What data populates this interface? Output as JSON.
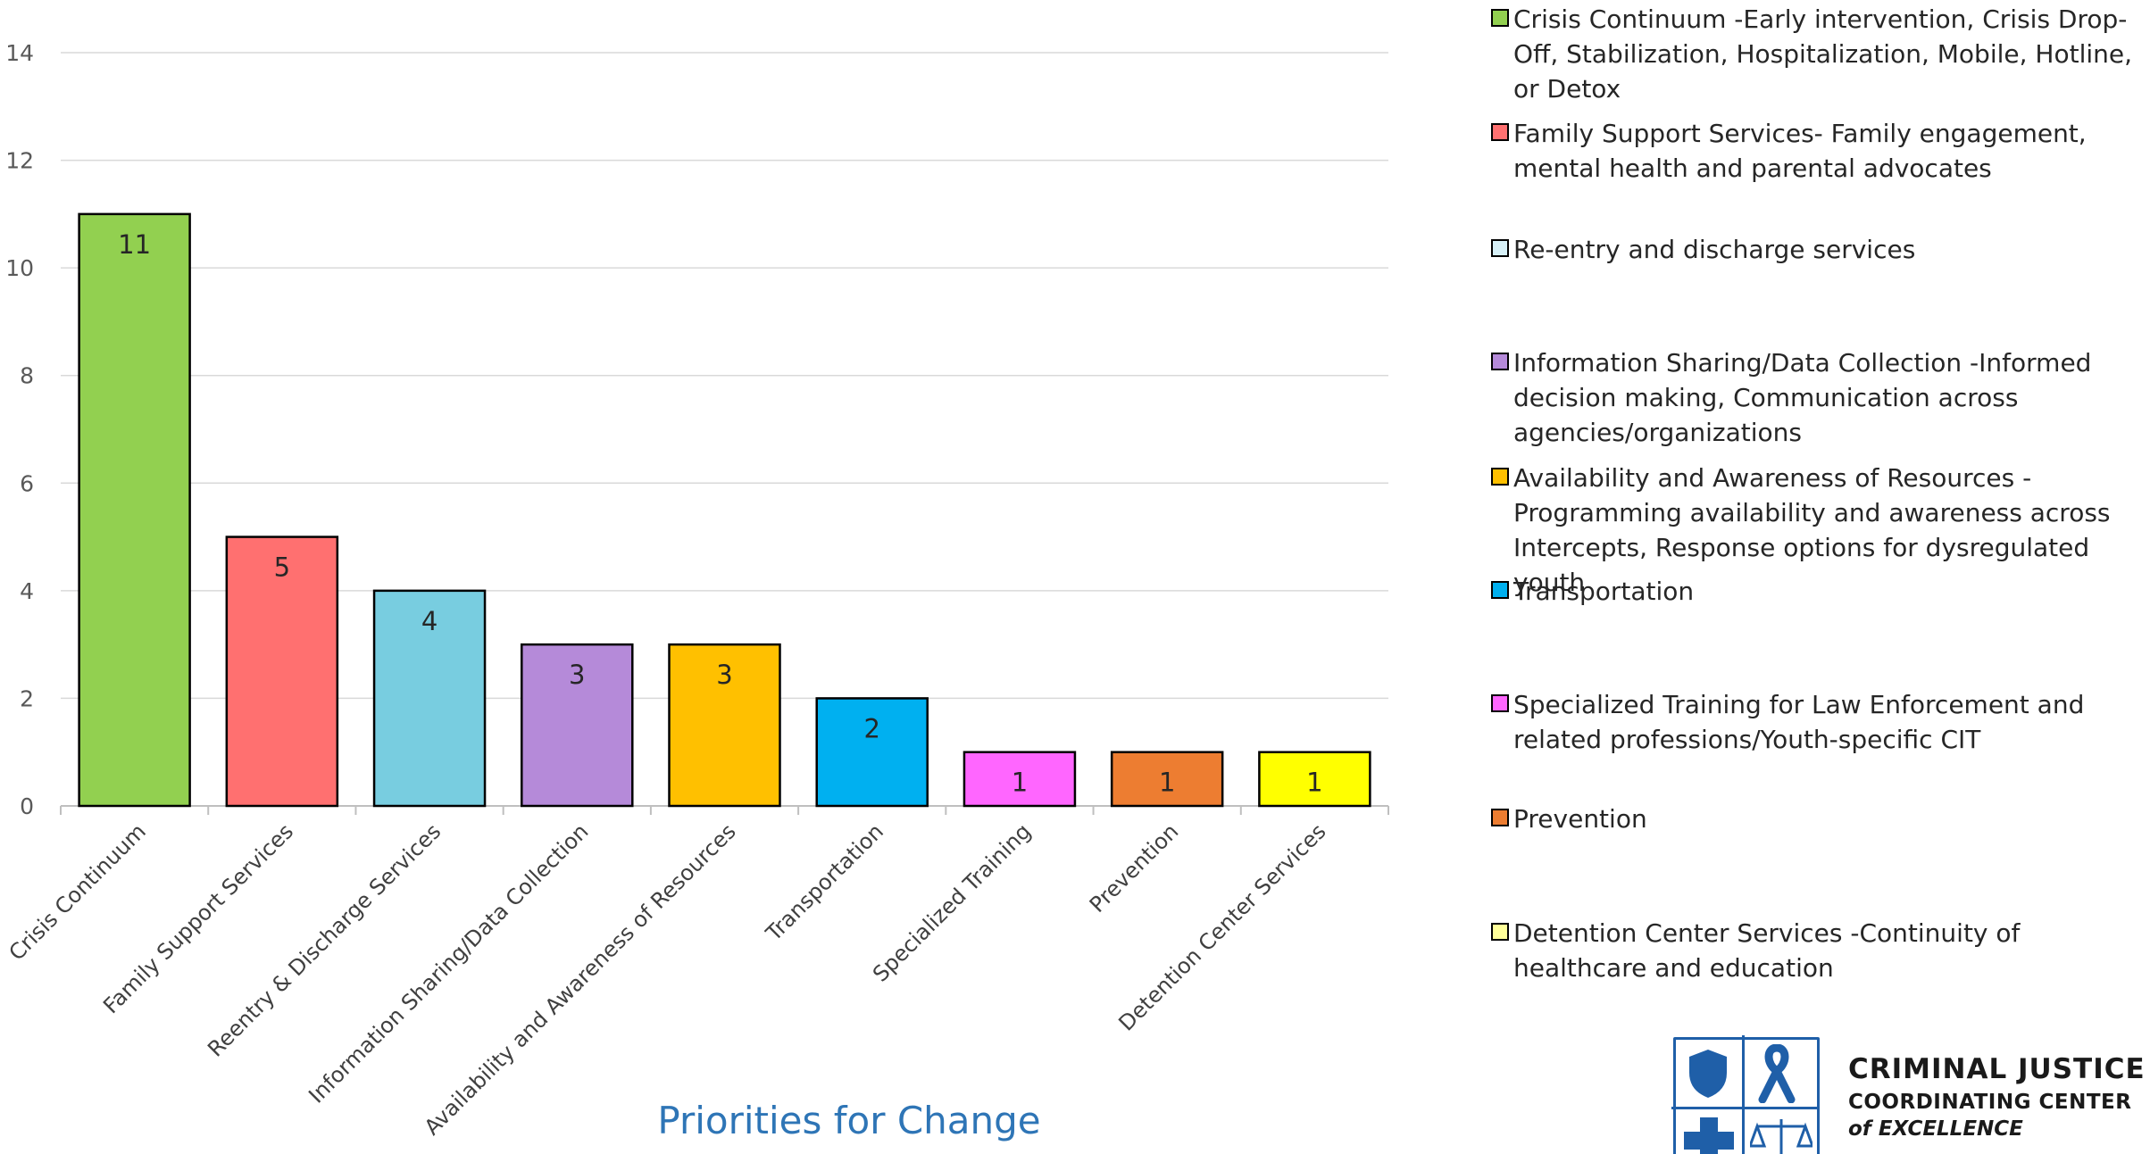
{
  "chart_data": {
    "type": "bar",
    "title": "",
    "xlabel": "Priorities for Change",
    "ylabel": "",
    "ylim": [
      0,
      14
    ],
    "yticks": [
      0,
      2,
      4,
      6,
      8,
      10,
      12,
      14
    ],
    "grid": true,
    "legend_position": "right",
    "categories": [
      "Crisis Continuum",
      "Family Support Services",
      "Reentry & Discharge Services",
      "Information Sharing/Data Collection",
      "Availability and Awareness of Resources",
      "Transportation",
      "Specialized Training",
      "Prevention",
      "Detention Center Services"
    ],
    "values": [
      11,
      5,
      4,
      3,
      3,
      2,
      1,
      1,
      1
    ],
    "colors": [
      "#92d050",
      "#ff7070",
      "#78cde0",
      "#b58ad9",
      "#ffc000",
      "#00b0f0",
      "#ff66ff",
      "#ed7d31",
      "#ffff00"
    ],
    "legend": [
      {
        "text": "Crisis Continuum -Early intervention, Crisis Drop-Off, Stabilization, Hospitalization, Mobile, Hotline, or Detox",
        "color": "#92d050"
      },
      {
        "text": "Family Support Services- Family engagement, mental health and parental advocates",
        "color": "#ff7070"
      },
      {
        "text": "Re-entry and discharge services",
        "color": "#d6f0f7"
      },
      {
        "text": "Information Sharing/Data Collection -Informed decision making, Communication across agencies/organizations",
        "color": "#b58ad9"
      },
      {
        "text": "Availability and Awareness of Resources - Programming availability and awareness across Intercepts, Response options for dysregulated youth",
        "color": "#ffc000"
      },
      {
        "text": "Transportation",
        "color": "#00b0f0"
      },
      {
        "text": "Specialized Training for Law Enforcement and related professions/Youth-specific CIT",
        "color": "#ff66ff"
      },
      {
        "text": "Prevention",
        "color": "#ed7d31"
      },
      {
        "text": "Detention Center Services -Continuity of healthcare and education",
        "color": "#ffff99"
      }
    ]
  },
  "logo": {
    "line1": "CRIMINAL JUSTICE",
    "line2": "COORDINATING CENTER",
    "line3": "of EXCELLENCE",
    "icons": [
      "shield-icon",
      "ribbon-icon",
      "medical-cross-icon",
      "scales-icon"
    ],
    "brand_color": "#1f5fa8"
  }
}
